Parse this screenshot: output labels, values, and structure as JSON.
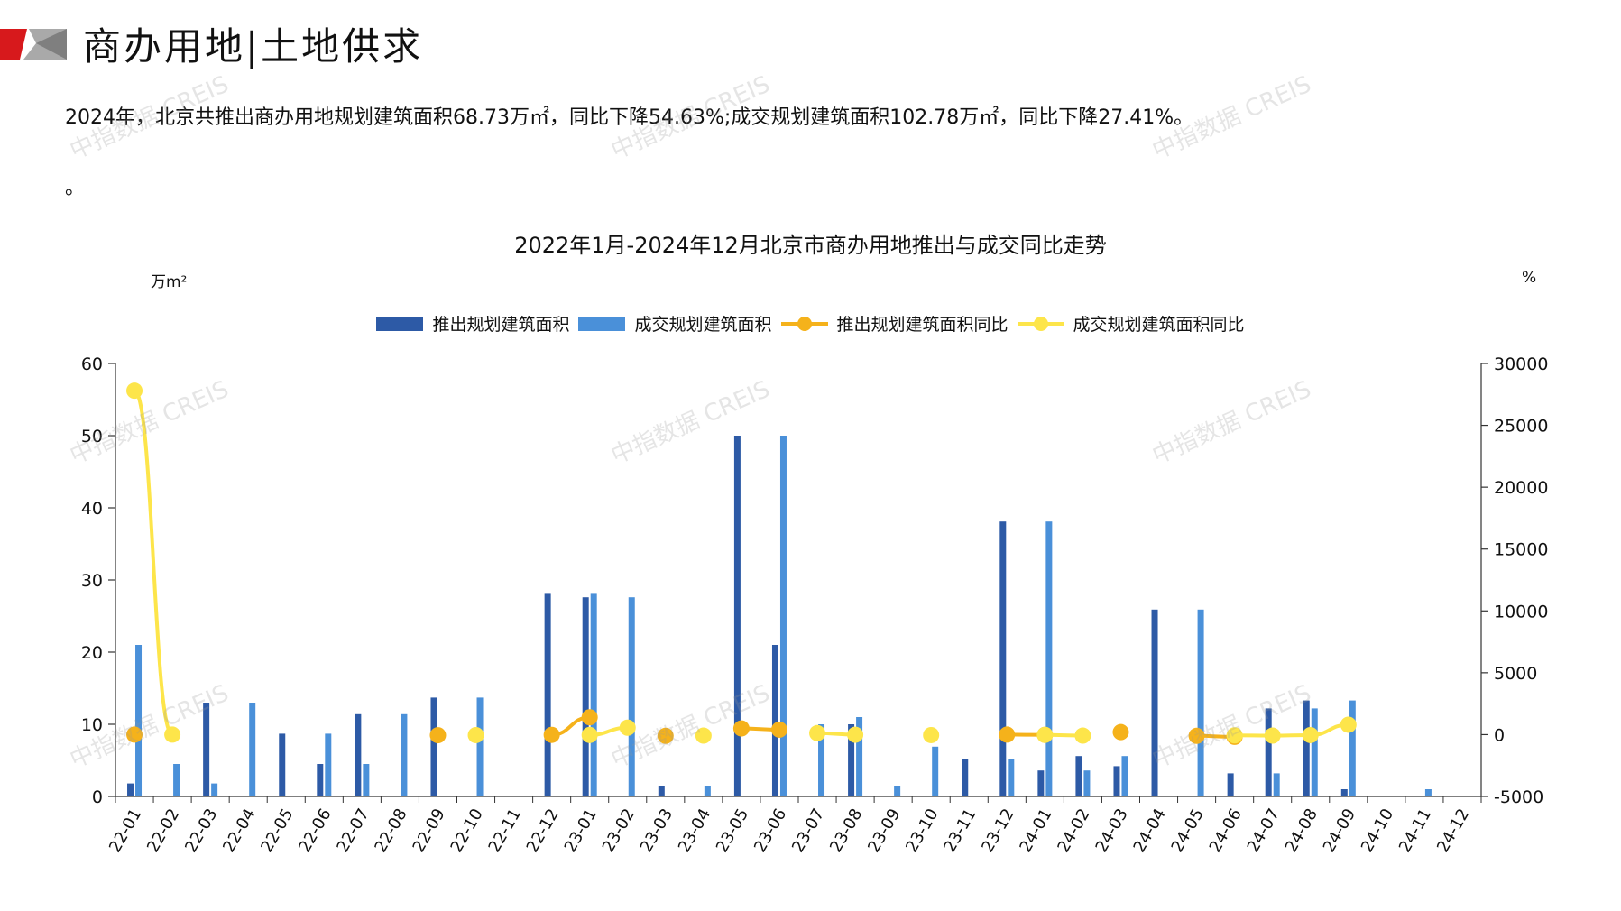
{
  "header": {
    "title": "商办用地|土地供求",
    "summary": "2024年，北京共推出商办用地规划建筑面积68.73万㎡，同比下降54.63%;成交规划建筑面积102.78万㎡，同比下降27.41%。",
    "summary_tail": "。"
  },
  "watermark": "中指数据 CREIS",
  "colors": {
    "logo_red": "#d7191c",
    "logo_gray": "#a9a9a9",
    "launch_bar": "#2d5aa6",
    "deal_bar": "#4a90d9",
    "launch_line": "#f5b21b",
    "deal_line": "#fde54a"
  },
  "chart_data": {
    "type": "bar",
    "title": "2022年1月-2024年12月北京市商办用地推出与成交同比走势",
    "left_unit": "万m²",
    "right_unit": "%",
    "ylim": [
      0,
      60
    ],
    "yticks": [
      0,
      10,
      20,
      30,
      40,
      50,
      60
    ],
    "y2lim": [
      -5000,
      30000
    ],
    "y2ticks": [
      -5000,
      0,
      5000,
      10000,
      15000,
      20000,
      25000,
      30000
    ],
    "categories": [
      "22-01",
      "22-02",
      "22-03",
      "22-04",
      "22-05",
      "22-06",
      "22-07",
      "22-08",
      "22-09",
      "22-10",
      "22-11",
      "22-12",
      "23-01",
      "23-02",
      "23-03",
      "23-04",
      "23-05",
      "23-06",
      "23-07",
      "23-08",
      "23-09",
      "23-10",
      "23-11",
      "23-12",
      "24-01",
      "24-02",
      "24-03",
      "24-04",
      "24-05",
      "24-06",
      "24-07",
      "24-08",
      "24-09",
      "24-10",
      "24-11",
      "24-12"
    ],
    "legend_position": "top",
    "series": [
      {
        "name": "推出规划建筑面积",
        "kind": "bar",
        "axis": "left",
        "values": [
          1.8,
          0,
          13.0,
          0,
          8.7,
          4.5,
          11.4,
          0,
          13.7,
          0,
          0,
          28.2,
          27.6,
          0,
          1.5,
          0,
          50.0,
          21.0,
          0,
          10.0,
          0,
          0,
          5.2,
          38.1,
          3.6,
          5.6,
          4.2,
          25.9,
          0,
          3.2,
          12.2,
          13.3,
          1.0,
          0,
          0,
          0
        ]
      },
      {
        "name": "成交规划建筑面积",
        "kind": "bar",
        "axis": "left",
        "values": [
          21.0,
          4.5,
          1.8,
          13.0,
          0,
          8.7,
          4.5,
          11.4,
          0,
          13.7,
          0,
          0,
          28.2,
          27.6,
          0,
          1.5,
          0,
          50.0,
          10.0,
          11.0,
          1.5,
          6.9,
          0,
          5.2,
          38.1,
          3.6,
          5.6,
          0,
          25.9,
          0,
          3.2,
          12.2,
          13.3,
          0,
          1.0,
          0
        ]
      },
      {
        "name": "推出规划建筑面积同比",
        "kind": "line",
        "axis": "right",
        "values": [
          0,
          null,
          null,
          null,
          null,
          null,
          null,
          null,
          -50,
          null,
          null,
          -20,
          1400,
          null,
          -100,
          null,
          500,
          400,
          null,
          null,
          null,
          null,
          null,
          0,
          -20,
          null,
          200,
          null,
          -100,
          -180,
          null,
          null,
          null,
          null,
          null,
          null
        ]
      },
      {
        "name": "成交规划建筑面积同比",
        "kind": "line",
        "axis": "right",
        "values": [
          27800,
          0,
          null,
          null,
          null,
          null,
          null,
          null,
          null,
          -40,
          null,
          null,
          -30,
          560,
          null,
          -80,
          null,
          null,
          120,
          -10,
          null,
          -40,
          null,
          null,
          -20,
          -80,
          null,
          null,
          null,
          -60,
          -80,
          -40,
          800,
          null,
          null,
          null
        ]
      }
    ]
  }
}
